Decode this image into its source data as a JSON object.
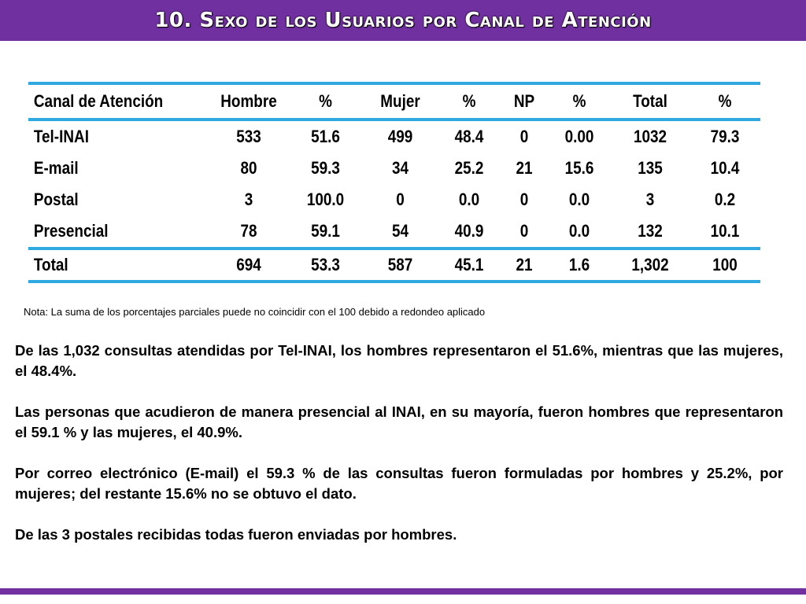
{
  "title": "10. Sexo de los Usuarios por Canal de Atención",
  "table": {
    "headers": [
      "Canal de Atención",
      "Hombre",
      "%",
      "Mujer",
      "%",
      "NP",
      "%",
      "Total",
      "%"
    ],
    "rows": [
      [
        "Tel-INAI",
        "533",
        "51.6",
        "499",
        "48.4",
        "0",
        "0.00",
        "1032",
        "79.3"
      ],
      [
        "E-mail",
        "80",
        "59.3",
        "34",
        "25.2",
        "21",
        "15.6",
        "135",
        "10.4"
      ],
      [
        "Postal",
        "3",
        "100.0",
        "0",
        "0.0",
        "0",
        "0.0",
        "3",
        "0.2"
      ],
      [
        "Presencial",
        "78",
        "59.1",
        "54",
        "40.9",
        "0",
        "0.0",
        "132",
        "10.1"
      ]
    ],
    "total_row": [
      "Total",
      "694",
      "53.3",
      "587",
      "45.1",
      "21",
      "1.6",
      "1,302",
      "100"
    ]
  },
  "note": "Nota: La suma de los porcentajes parciales puede no coincidir con el 100 debido a redondeo aplicado",
  "paragraphs": [
    "De las 1,032 consultas atendidas por Tel-INAI, los hombres representaron el 51.6%, mientras que las mujeres, el 48.4%.",
    "Las personas que acudieron de manera presencial al INAI, en su mayoría, fueron hombres que representaron el 59.1 % y las mujeres, el 40.9%.",
    "Por correo electrónico (E-mail) el 59.3 % de las consultas fueron formuladas por hombres y 25.2%, por mujeres; del restante 15.6% no se obtuvo el dato.",
    "De las 3 postales recibidas todas fueron enviadas por hombres."
  ],
  "colors": {
    "accent": "#7030a0",
    "rule": "#2fa9e0"
  }
}
